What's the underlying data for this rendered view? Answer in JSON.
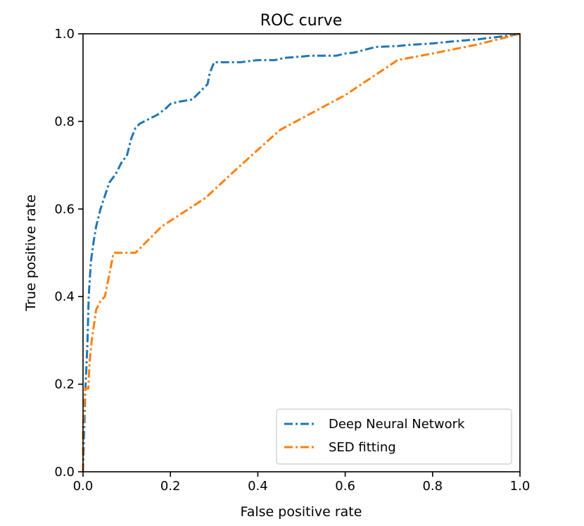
{
  "chart_data": {
    "type": "line",
    "title": "ROC curve",
    "xlabel": "False positive rate",
    "ylabel": "True positive rate",
    "xlim": [
      0.0,
      1.0
    ],
    "ylim": [
      0.0,
      1.0
    ],
    "grid": false,
    "legend_position": "bottom-right",
    "x_ticks": [
      "0.0",
      "0.2",
      "0.4",
      "0.6",
      "0.8",
      "1.0"
    ],
    "y_ticks": [
      "0.0",
      "0.2",
      "0.4",
      "0.6",
      "0.8",
      "1.0"
    ],
    "series": [
      {
        "name": "Deep Neural Network",
        "color": "#1f77b4",
        "linestyle": "dashdot",
        "points": [
          [
            0.0,
            0.0
          ],
          [
            0.005,
            0.18
          ],
          [
            0.01,
            0.29
          ],
          [
            0.013,
            0.4
          ],
          [
            0.018,
            0.48
          ],
          [
            0.025,
            0.53
          ],
          [
            0.03,
            0.56
          ],
          [
            0.04,
            0.6
          ],
          [
            0.05,
            0.63
          ],
          [
            0.06,
            0.66
          ],
          [
            0.075,
            0.68
          ],
          [
            0.09,
            0.71
          ],
          [
            0.1,
            0.72
          ],
          [
            0.105,
            0.74
          ],
          [
            0.11,
            0.76
          ],
          [
            0.12,
            0.785
          ],
          [
            0.13,
            0.795
          ],
          [
            0.15,
            0.805
          ],
          [
            0.17,
            0.815
          ],
          [
            0.19,
            0.83
          ],
          [
            0.2,
            0.84
          ],
          [
            0.22,
            0.845
          ],
          [
            0.25,
            0.85
          ],
          [
            0.27,
            0.87
          ],
          [
            0.285,
            0.885
          ],
          [
            0.29,
            0.91
          ],
          [
            0.3,
            0.935
          ],
          [
            0.36,
            0.935
          ],
          [
            0.4,
            0.94
          ],
          [
            0.44,
            0.94
          ],
          [
            0.46,
            0.945
          ],
          [
            0.5,
            0.948
          ],
          [
            0.52,
            0.95
          ],
          [
            0.58,
            0.95
          ],
          [
            0.6,
            0.955
          ],
          [
            0.62,
            0.957
          ],
          [
            0.67,
            0.97
          ],
          [
            0.72,
            0.972
          ],
          [
            0.75,
            0.975
          ],
          [
            0.8,
            0.978
          ],
          [
            0.85,
            0.983
          ],
          [
            0.9,
            0.987
          ],
          [
            0.95,
            0.993
          ],
          [
            1.0,
            1.0
          ]
        ]
      },
      {
        "name": "SED fitting",
        "color": "#ff7f0e",
        "linestyle": "dashdot",
        "points": [
          [
            0.0,
            0.0
          ],
          [
            0.0,
            0.1
          ],
          [
            0.005,
            0.19
          ],
          [
            0.012,
            0.19
          ],
          [
            0.015,
            0.25
          ],
          [
            0.02,
            0.3
          ],
          [
            0.03,
            0.37
          ],
          [
            0.04,
            0.39
          ],
          [
            0.05,
            0.4
          ],
          [
            0.06,
            0.45
          ],
          [
            0.07,
            0.5
          ],
          [
            0.12,
            0.5
          ],
          [
            0.18,
            0.56
          ],
          [
            0.28,
            0.625
          ],
          [
            0.35,
            0.69
          ],
          [
            0.45,
            0.78
          ],
          [
            0.6,
            0.86
          ],
          [
            0.72,
            0.94
          ],
          [
            0.8,
            0.955
          ],
          [
            0.9,
            0.975
          ],
          [
            1.0,
            1.0
          ]
        ]
      }
    ]
  }
}
